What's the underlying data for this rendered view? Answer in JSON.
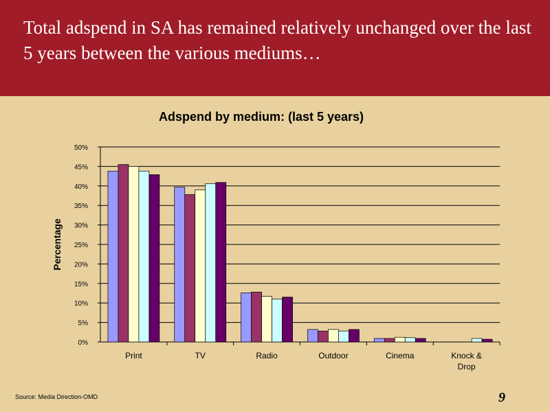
{
  "header": {
    "title": "Total adspend in SA has remained relatively unchanged over the last 5 years between the various mediums…"
  },
  "source": "Source: Media Direction-OMD",
  "page_number": "9",
  "chart_data": {
    "type": "bar",
    "title": "Adspend by medium: (last 5 years)",
    "xlabel": "",
    "ylabel": "Percentage",
    "ylim": [
      0,
      50
    ],
    "y_ticks": [
      "0%",
      "5%",
      "10%",
      "15%",
      "20%",
      "25%",
      "30%",
      "35%",
      "40%",
      "45%",
      "50%"
    ],
    "categories": [
      "Print",
      "TV",
      "Radio",
      "Outdoor",
      "Cinema",
      "Knock & Drop"
    ],
    "grid": true,
    "series": [
      {
        "color": "#9999ff",
        "values": [
          43.8,
          39.7,
          12.6,
          3.2,
          0.9,
          0.0
        ]
      },
      {
        "color": "#993366",
        "values": [
          45.5,
          37.8,
          12.8,
          2.8,
          0.9,
          0.0
        ]
      },
      {
        "color": "#ffffcc",
        "values": [
          45.0,
          39.0,
          11.7,
          3.2,
          1.2,
          0.0
        ]
      },
      {
        "color": "#ccffff",
        "values": [
          43.8,
          40.6,
          11.0,
          2.8,
          1.1,
          0.9
        ]
      },
      {
        "color": "#660066",
        "values": [
          42.9,
          40.9,
          11.5,
          3.2,
          0.9,
          0.7
        ]
      }
    ]
  }
}
